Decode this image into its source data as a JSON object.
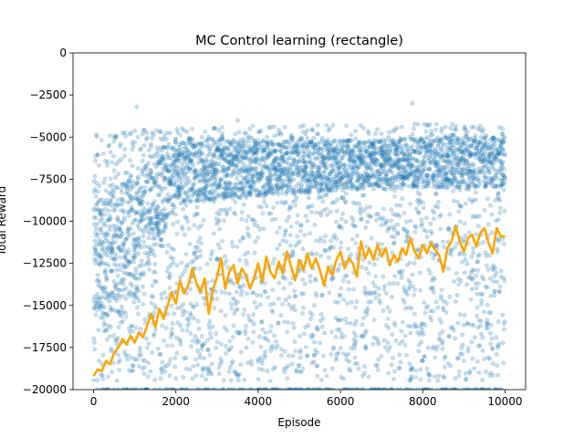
{
  "chart_data": {
    "type": "scatter",
    "title": "MC Control learning (rectangle)",
    "xlabel": "Episode",
    "ylabel": "Total Reward",
    "xlim": [
      -500,
      10500
    ],
    "ylim": [
      -20000,
      0
    ],
    "xticks": [
      0,
      2000,
      4000,
      6000,
      8000,
      10000
    ],
    "yticks": [
      0,
      -2500,
      -5000,
      -7500,
      -10000,
      -12500,
      -15000,
      -17500,
      -20000
    ],
    "grid": false,
    "colors": {
      "scatter": "#1f77b4",
      "moving_average": "#ffa500"
    },
    "scatter_alpha": 0.25,
    "series": [
      {
        "kind": "scatter",
        "episodes": 10000,
        "floor_value": -20000,
        "envelope": [
          {
            "x": 0,
            "band_top": -4800,
            "band_bottom": -19500,
            "dense_top": -9000,
            "dense_bottom": -16000
          },
          {
            "x": 1000,
            "band_top": -4500,
            "band_bottom": -19500,
            "dense_top": -7000,
            "dense_bottom": -15000
          },
          {
            "x": 2000,
            "band_top": -4500,
            "band_bottom": -19500,
            "dense_top": -5000,
            "dense_bottom": -9000
          },
          {
            "x": 4000,
            "band_top": -4300,
            "band_bottom": -19500,
            "dense_top": -5200,
            "dense_bottom": -8500
          },
          {
            "x": 6000,
            "band_top": -4200,
            "band_bottom": -19500,
            "dense_top": -5200,
            "dense_bottom": -8200
          },
          {
            "x": 8000,
            "band_top": -4200,
            "band_bottom": -19500,
            "dense_top": -5000,
            "dense_bottom": -8000
          },
          {
            "x": 10000,
            "band_top": -4200,
            "band_bottom": -19500,
            "dense_top": -5000,
            "dense_bottom": -8000
          }
        ],
        "outliers": [
          {
            "x": 1050,
            "y": -3200
          },
          {
            "x": 7750,
            "y": -3000
          },
          {
            "x": 3500,
            "y": -4000
          }
        ]
      },
      {
        "kind": "line",
        "points": [
          [
            0,
            -19200
          ],
          [
            100,
            -18800
          ],
          [
            200,
            -18900
          ],
          [
            300,
            -18300
          ],
          [
            400,
            -18500
          ],
          [
            500,
            -17800
          ],
          [
            600,
            -17500
          ],
          [
            700,
            -17000
          ],
          [
            800,
            -17300
          ],
          [
            900,
            -16800
          ],
          [
            1000,
            -17200
          ],
          [
            1100,
            -16600
          ],
          [
            1200,
            -16900
          ],
          [
            1300,
            -16200
          ],
          [
            1400,
            -15500
          ],
          [
            1500,
            -16300
          ],
          [
            1600,
            -15200
          ],
          [
            1700,
            -15800
          ],
          [
            1800,
            -15000
          ],
          [
            1900,
            -14200
          ],
          [
            2000,
            -14900
          ],
          [
            2100,
            -13500
          ],
          [
            2200,
            -14300
          ],
          [
            2300,
            -13800
          ],
          [
            2400,
            -12800
          ],
          [
            2500,
            -13700
          ],
          [
            2600,
            -14200
          ],
          [
            2700,
            -13400
          ],
          [
            2800,
            -15500
          ],
          [
            2900,
            -14100
          ],
          [
            3000,
            -13300
          ],
          [
            3100,
            -12200
          ],
          [
            3200,
            -14000
          ],
          [
            3300,
            -13000
          ],
          [
            3400,
            -12600
          ],
          [
            3500,
            -13700
          ],
          [
            3600,
            -12800
          ],
          [
            3700,
            -13200
          ],
          [
            3800,
            -14000
          ],
          [
            3900,
            -13400
          ],
          [
            4000,
            -12500
          ],
          [
            4100,
            -13600
          ],
          [
            4200,
            -12100
          ],
          [
            4300,
            -13000
          ],
          [
            4400,
            -13400
          ],
          [
            4500,
            -12400
          ],
          [
            4600,
            -13100
          ],
          [
            4700,
            -11800
          ],
          [
            4800,
            -12700
          ],
          [
            4900,
            -13500
          ],
          [
            5000,
            -12300
          ],
          [
            5100,
            -12900
          ],
          [
            5200,
            -11900
          ],
          [
            5300,
            -12800
          ],
          [
            5400,
            -12200
          ],
          [
            5500,
            -12900
          ],
          [
            5600,
            -13800
          ],
          [
            5700,
            -12700
          ],
          [
            5800,
            -13200
          ],
          [
            5900,
            -12300
          ],
          [
            6000,
            -11800
          ],
          [
            6100,
            -12800
          ],
          [
            6200,
            -12200
          ],
          [
            6300,
            -12500
          ],
          [
            6400,
            -13300
          ],
          [
            6500,
            -11200
          ],
          [
            6600,
            -12200
          ],
          [
            6700,
            -11600
          ],
          [
            6800,
            -12300
          ],
          [
            6900,
            -11400
          ],
          [
            7000,
            -12100
          ],
          [
            7100,
            -11600
          ],
          [
            7200,
            -12600
          ],
          [
            7300,
            -12000
          ],
          [
            7400,
            -12400
          ],
          [
            7500,
            -11600
          ],
          [
            7600,
            -12000
          ],
          [
            7700,
            -11000
          ],
          [
            7800,
            -11800
          ],
          [
            7900,
            -12200
          ],
          [
            8000,
            -11400
          ],
          [
            8100,
            -11900
          ],
          [
            8200,
            -11300
          ],
          [
            8300,
            -11700
          ],
          [
            8400,
            -12000
          ],
          [
            8500,
            -13000
          ],
          [
            8600,
            -11600
          ],
          [
            8700,
            -11200
          ],
          [
            8800,
            -10300
          ],
          [
            8900,
            -11200
          ],
          [
            9000,
            -11800
          ],
          [
            9100,
            -11000
          ],
          [
            9200,
            -10800
          ],
          [
            9300,
            -11500
          ],
          [
            9400,
            -10700
          ],
          [
            9500,
            -10400
          ],
          [
            9600,
            -11300
          ],
          [
            9700,
            -11900
          ],
          [
            9800,
            -10400
          ],
          [
            9900,
            -10900
          ],
          [
            10000,
            -10900
          ]
        ]
      }
    ]
  }
}
